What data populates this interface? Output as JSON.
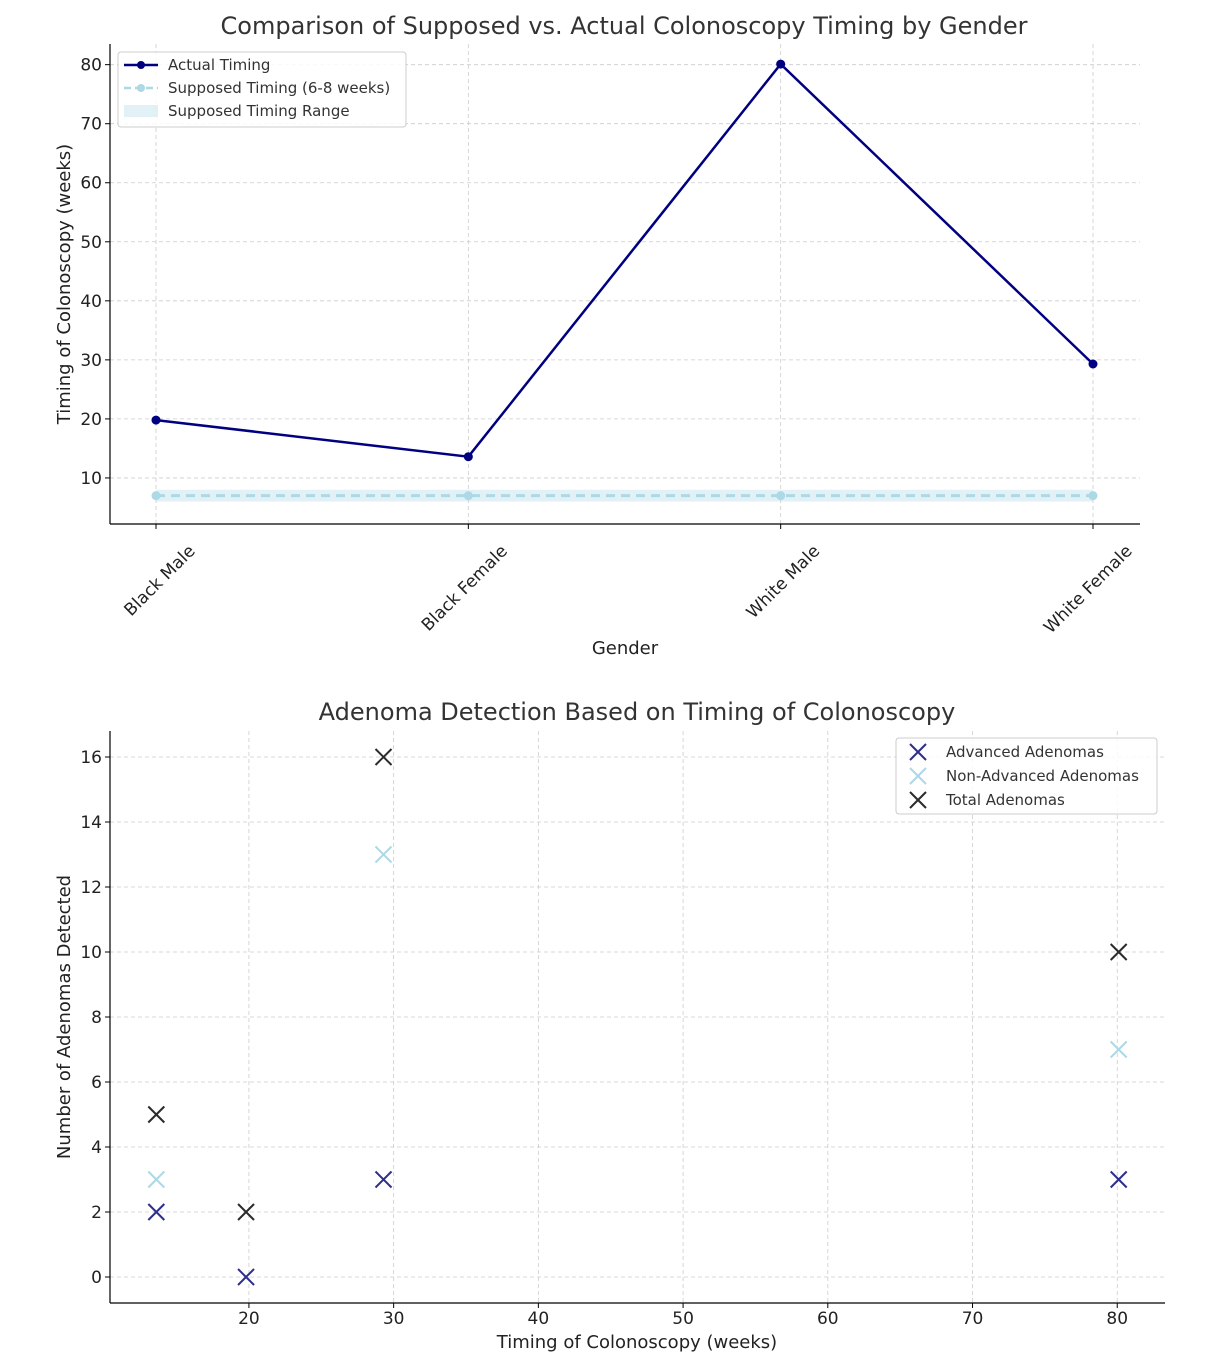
{
  "chart_data": [
    {
      "type": "line",
      "title": "Comparison of Supposed vs. Actual Colonoscopy Timing by Gender",
      "xlabel": "Gender",
      "ylabel": "Timing of Colonoscopy (weeks)",
      "categories": [
        "Black Male",
        "Black Female",
        "White Male",
        "White Female"
      ],
      "ylim": [
        2.2,
        83.5
      ],
      "yticks": [
        10,
        20,
        30,
        40,
        50,
        60,
        70,
        80
      ],
      "grid": true,
      "legend_position": "top-left",
      "series": [
        {
          "name": "Actual Timing",
          "values": [
            19.8,
            13.6,
            80.1,
            29.3
          ],
          "color": "#000080",
          "style": "solid-marker"
        },
        {
          "name": "Supposed Timing (6-8 weeks)",
          "values": [
            7,
            7,
            7,
            7
          ],
          "color": "#add8e6",
          "style": "dashed-marker"
        }
      ],
      "band": {
        "name": "Supposed Timing Range",
        "low": 6,
        "high": 8,
        "color": "#add8e6"
      }
    },
    {
      "type": "scatter",
      "title": "Adenoma Detection Based on Timing of Colonoscopy",
      "xlabel": "Timing of Colonoscopy (weeks)",
      "ylabel": "Number of Adenomas Detected",
      "xlim": [
        10.4,
        83.3
      ],
      "ylim": [
        -0.8,
        16.8
      ],
      "xticks": [
        20,
        30,
        40,
        50,
        60,
        70,
        80
      ],
      "yticks": [
        0,
        2,
        4,
        6,
        8,
        10,
        12,
        14,
        16
      ],
      "grid": true,
      "legend_position": "top-right",
      "series": [
        {
          "name": "Advanced Adenomas",
          "color": "#2e2e8c",
          "points": [
            [
              13.6,
              2
            ],
            [
              19.8,
              0
            ],
            [
              29.3,
              3
            ],
            [
              80.1,
              3
            ]
          ]
        },
        {
          "name": "Non-Advanced Adenomas",
          "color": "#add8e6",
          "points": [
            [
              13.6,
              3
            ],
            [
              29.3,
              13
            ],
            [
              80.1,
              7
            ]
          ]
        },
        {
          "name": "Total Adenomas",
          "color": "#2b2b2b",
          "points": [
            [
              13.6,
              5
            ],
            [
              19.8,
              2
            ],
            [
              29.3,
              16
            ],
            [
              80.1,
              10
            ]
          ]
        }
      ]
    }
  ]
}
